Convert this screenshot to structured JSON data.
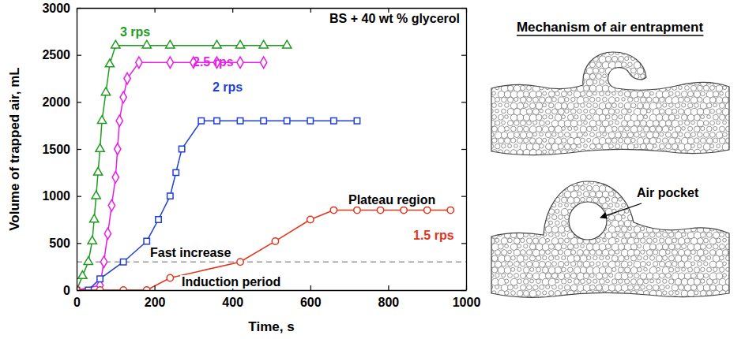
{
  "chart_data": {
    "type": "line",
    "title": "BS + 40 wt % glycerol",
    "x_label": "Time, s",
    "y_label": "Volume of trapped air, mL",
    "xlim": [
      0,
      1000
    ],
    "xticks": [
      0,
      200,
      400,
      600,
      800,
      1000
    ],
    "ylim": [
      0,
      3000
    ],
    "yticks": [
      0,
      500,
      1000,
      1500,
      2000,
      2500,
      3000
    ],
    "grid": false,
    "series": [
      {
        "name": "3 rps",
        "color": "#1f9c1f",
        "marker": "triangle",
        "line_style": "solid",
        "x": [
          0,
          15,
          30,
          40,
          45,
          50,
          55,
          60,
          65,
          75,
          85,
          100,
          180,
          240,
          360,
          420,
          480,
          540
        ],
        "values": [
          0,
          150,
          300,
          520,
          750,
          1000,
          1250,
          1500,
          1800,
          2100,
          2400,
          2600,
          2600,
          2600,
          2600,
          2600,
          2600,
          2600
        ]
      },
      {
        "name": "2.5 rps",
        "color": "#e81ee8",
        "marker": "diamond",
        "line_style": "solid",
        "x": [
          0,
          60,
          70,
          80,
          90,
          100,
          105,
          110,
          120,
          130,
          160,
          240,
          300,
          360,
          420,
          480
        ],
        "values": [
          0,
          50,
          300,
          600,
          900,
          1200,
          1500,
          1800,
          2050,
          2250,
          2420,
          2420,
          2420,
          2420,
          2420,
          2420
        ]
      },
      {
        "name": "2 rps",
        "color": "#1f3fd6",
        "marker": "square",
        "line_style": "solid",
        "x": [
          0,
          30,
          60,
          120,
          180,
          210,
          240,
          255,
          270,
          320,
          360,
          420,
          480,
          540,
          600,
          660,
          720
        ],
        "values": [
          0,
          0,
          120,
          300,
          520,
          750,
          1000,
          1250,
          1500,
          1800,
          1800,
          1800,
          1800,
          1800,
          1800,
          1800,
          1800
        ]
      },
      {
        "name": "1.5 rps",
        "color": "#e3341c",
        "marker": "circle",
        "line_style": "solid",
        "x": [
          0,
          60,
          120,
          180,
          240,
          420,
          510,
          600,
          660,
          720,
          780,
          840,
          900,
          960
        ],
        "values": [
          0,
          0,
          0,
          0,
          130,
          300,
          520,
          750,
          850,
          850,
          850,
          850,
          850,
          850
        ]
      }
    ],
    "reference_line": {
      "value": 300,
      "line_style": "dashed"
    },
    "annotations": [
      "Plateau region",
      "Fast increase",
      "Induction period"
    ]
  },
  "diagram": {
    "title": "Mechanism of air entrapment",
    "label": "Air pocket"
  }
}
